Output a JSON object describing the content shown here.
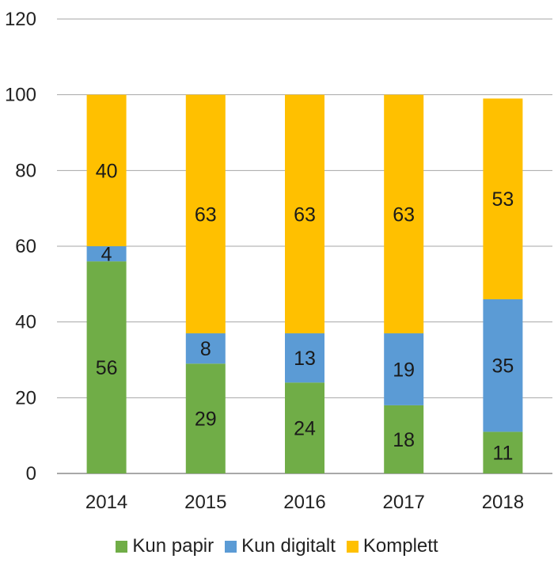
{
  "chart_data": {
    "type": "bar",
    "stacked": true,
    "title": "",
    "xlabel": "",
    "ylabel": "",
    "categories": [
      "2014",
      "2015",
      "2016",
      "2017",
      "2018"
    ],
    "ylim": [
      0,
      120
    ],
    "yticks": [
      "0",
      "20",
      "40",
      "60",
      "80",
      "100",
      "120"
    ],
    "grid": true,
    "legend_position": "bottom",
    "series": [
      {
        "name": "Kun papir",
        "color": "#70ad47",
        "values": [
          56,
          29,
          24,
          18,
          11
        ]
      },
      {
        "name": "Kun digitalt",
        "color": "#5b9bd5",
        "values": [
          4,
          8,
          13,
          19,
          35
        ]
      },
      {
        "name": "Komplett",
        "color": "#ffc000",
        "values": [
          40,
          63,
          63,
          63,
          53
        ]
      }
    ]
  }
}
